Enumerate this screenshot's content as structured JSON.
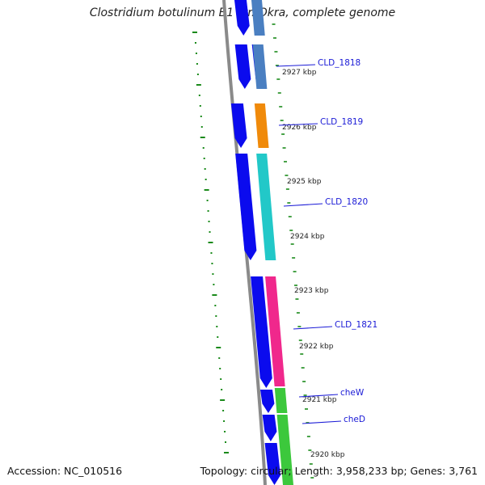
{
  "title": "Clostridium botulinum B1 str. Okra, complete genome",
  "footer": {
    "accession": "Accession: NC_010516",
    "summary": "Topology: circular; Length: 3,958,233 bp; Genes: 3,761"
  },
  "ticks": [
    "2927 kbp",
    "2926 kbp",
    "2925 kbp",
    "2924 kbp",
    "2923 kbp",
    "2922 kbp",
    "2921 kbp",
    "2920 kbp"
  ],
  "genes": [
    "CLD_1818",
    "CLD_1819",
    "CLD_1820",
    "CLD_1821",
    "cheW",
    "cheD"
  ],
  "colors": {
    "backbone": "#8a8a8a",
    "cds": "#0b0bee",
    "gc_skew": "#1a8a1a",
    "label": "#1a1ad6",
    "features": [
      "#4a7fc1",
      "#4a7fc1",
      "#f08a0a",
      "#22c8c8",
      "#f0288c",
      "#3cc83c",
      "#3cc83c"
    ]
  }
}
